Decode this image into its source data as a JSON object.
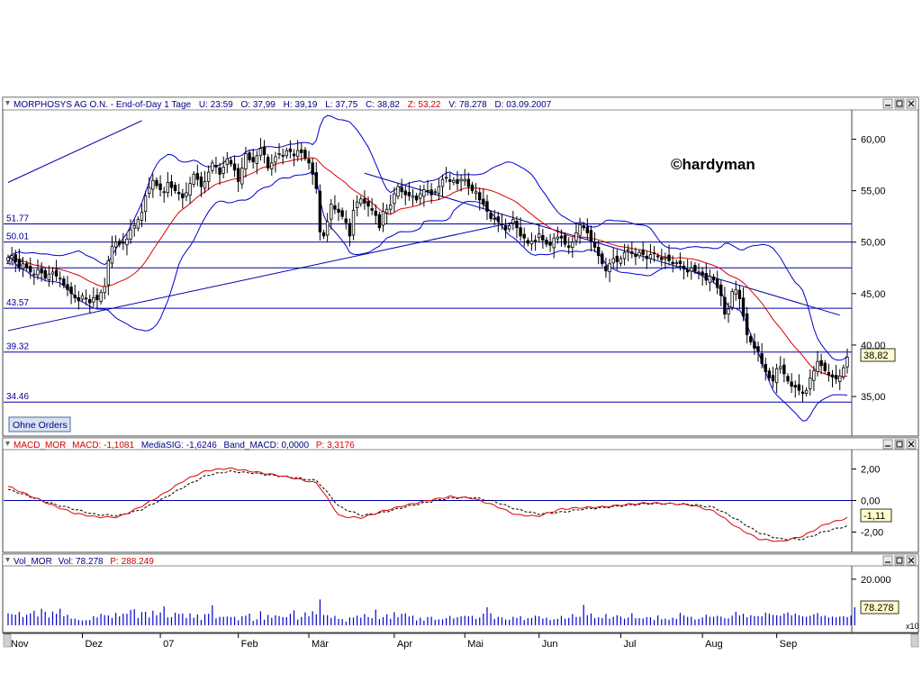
{
  "header": {
    "symbol": "MORPHOSYS AG O.N. - End-of-Day 1 Tage",
    "u_label": "U: 23:59",
    "o_label": "O: 37,99",
    "h_label": "H: 39,19",
    "l_label": "L: 37,75",
    "c_label": "C: 38,82",
    "z_label": "Z: 53,22",
    "v_label": "V: 78.278",
    "d_label": "D: 03.09.2007"
  },
  "watermark": "©hardyman",
  "orders_button": "Ohne Orders",
  "macd_header": {
    "name": "MACD_MOR",
    "macd": "MACD: -1,1081",
    "signal": "MediaSIG: -1,6246",
    "band": "Band_MACD: 0,0000",
    "p": "P: 3,3176"
  },
  "vol_header": {
    "name": "Vol_MOR",
    "vol": "Vol: 78.278",
    "p": "P: 288.249"
  },
  "last_price_label": "38,82",
  "last_macd_label": "-1,11",
  "last_vol_label": "78.278",
  "vol_scale_label": "x10",
  "colors": {
    "candle": "#000000",
    "bollinger": "#0000cd",
    "moving_average": "#dd0000",
    "hlines": "#0000aa",
    "macd": "#dd0000",
    "signal": "#000000",
    "volume": "#0000cd"
  },
  "chart_data": [
    {
      "type": "candlestick",
      "title": "MORPHOSYS AG O.N. - End-of-Day 1 Tage",
      "x_ticks": [
        "Nov",
        "Dez",
        "07",
        "Feb",
        "Mär",
        "Apr",
        "Mai",
        "Jun",
        "Jul",
        "Aug",
        "Sep"
      ],
      "ylim": [
        31.5,
        62.5
      ],
      "y_ticks": [
        "60,00",
        "55,00",
        "50,00",
        "45,00",
        "40,00",
        "35,00"
      ],
      "horizontal_levels": [
        {
          "label": "51.77",
          "value": 51.77
        },
        {
          "label": "50.01",
          "value": 50.01
        },
        {
          "label": "47.5",
          "value": 47.5
        },
        {
          "label": "43.57",
          "value": 43.57
        },
        {
          "label": "39.32",
          "value": 39.32
        },
        {
          "label": "34.46",
          "value": 34.46
        }
      ],
      "trendlines": [
        {
          "name": "upper channel",
          "from": [
            0,
            55.8
          ],
          "to": [
            36,
            61.8
          ]
        },
        {
          "name": "lower channel",
          "from": [
            0,
            41.4
          ],
          "to": [
            137,
            52.0
          ]
        },
        {
          "name": "downtrend",
          "from": [
            96,
            56.7
          ],
          "to": [
            224,
            42.9
          ]
        }
      ],
      "closes": [
        48.5,
        48.7,
        48.1,
        47.6,
        47.9,
        47.5,
        47.1,
        46.9,
        47.3,
        47.0,
        46.5,
        46.9,
        47.1,
        46.7,
        46.5,
        45.8,
        45.4,
        45.0,
        44.6,
        44.3,
        44.8,
        44.5,
        44.1,
        44.6,
        44.4,
        45.1,
        45.7,
        48.2,
        49.6,
        50.0,
        49.8,
        49.9,
        50.3,
        51.2,
        51.6,
        52.2,
        52.9,
        54.5,
        55.3,
        56.0,
        55.5,
        55.1,
        54.9,
        55.8,
        55.3,
        55.0,
        54.7,
        54.3,
        54.8,
        55.7,
        56.6,
        56.1,
        55.4,
        55.9,
        56.8,
        57.7,
        57.3,
        56.6,
        57.3,
        58.1,
        57.6,
        57.0,
        55.9,
        57.2,
        58.6,
        58.0,
        57.8,
        58.4,
        59.1,
        58.5,
        57.2,
        57.7,
        58.3,
        58.6,
        58.4,
        58.9,
        58.8,
        58.4,
        58.9,
        58.7,
        58.2,
        57.7,
        56.6,
        55.2,
        51.0,
        50.6,
        52.0,
        53.7,
        53.2,
        52.9,
        52.5,
        51.9,
        50.6,
        53.1,
        53.9,
        54.2,
        53.8,
        53.5,
        53.1,
        52.6,
        51.4,
        53.0,
        53.2,
        53.6,
        54.7,
        55.4,
        54.9,
        54.6,
        54.5,
        54.5,
        54.1,
        54.7,
        55.1,
        55.0,
        54.6,
        54.9,
        55.4,
        56.1,
        56.3,
        55.9,
        56.0,
        55.7,
        56.1,
        56.1,
        55.4,
        55.0,
        54.9,
        54.1,
        53.7,
        53.0,
        52.3,
        52.3,
        52.0,
        51.7,
        51.2,
        51.6,
        52.2,
        51.4,
        50.6,
        50.4,
        49.9,
        50.1,
        50.2,
        50.8,
        50.2,
        49.8,
        49.7,
        50.4,
        50.5,
        50.4,
        49.8,
        49.5,
        50.0,
        50.9,
        51.7,
        51.4,
        50.9,
        50.1,
        49.5,
        48.7,
        47.9,
        47.2,
        47.9,
        48.4,
        48.1,
        48.4,
        49.0,
        49.3,
        48.9,
        48.6,
        49.0,
        48.8,
        48.4,
        48.8,
        48.9,
        48.6,
        48.3,
        48.5,
        48.2,
        47.9,
        48.0,
        47.9,
        47.4,
        47.1,
        47.5,
        47.2,
        47.1,
        46.8,
        46.3,
        46.7,
        46.3,
        45.6,
        44.8,
        43.0,
        43.5,
        45.2,
        45.4,
        44.5,
        42.8,
        41.0,
        40.3,
        39.7,
        39.4,
        38.2,
        37.4,
        36.8,
        36.5,
        37.7,
        37.9,
        37.2,
        36.5,
        36.0,
        35.9,
        35.6,
        35.3,
        35.6,
        36.8,
        37.5,
        38.4,
        38.0,
        37.5,
        37.1,
        36.9,
        36.7,
        37.0,
        37.8,
        38.82
      ]
    },
    {
      "type": "line",
      "title": "MACD_MOR",
      "ylim": [
        -3.0,
        3.0
      ],
      "y_ticks": [
        "2,00",
        "0,00",
        "-2,00"
      ],
      "series": [
        {
          "name": "MACD",
          "values": [
            0.9,
            0.3,
            -0.3,
            -0.8,
            -1.05,
            -1.05,
            -0.4,
            0.4,
            1.3,
            1.9,
            2.05,
            1.85,
            1.65,
            1.4,
            1.1,
            -1.0,
            -1.1,
            -0.65,
            -0.3,
            0.0,
            0.25,
            0.15,
            -0.3,
            -0.9,
            -1.0,
            -0.55,
            -0.45,
            -0.4,
            -0.25,
            -0.15,
            -0.2,
            -0.3,
            -0.7,
            -1.7,
            -2.45,
            -2.6,
            -2.25,
            -1.5,
            -1.11
          ]
        },
        {
          "name": "MediaSIG",
          "values": [
            0.7,
            0.25,
            -0.2,
            -0.55,
            -0.9,
            -0.95,
            -0.6,
            0.1,
            0.9,
            1.6,
            1.85,
            1.75,
            1.6,
            1.45,
            1.25,
            -0.4,
            -0.95,
            -0.75,
            -0.4,
            -0.1,
            0.15,
            0.2,
            -0.05,
            -0.55,
            -0.85,
            -0.75,
            -0.55,
            -0.45,
            -0.3,
            -0.2,
            -0.2,
            -0.25,
            -0.45,
            -1.2,
            -2.05,
            -2.45,
            -2.45,
            -1.95,
            -1.62
          ]
        }
      ]
    },
    {
      "type": "bar",
      "title": "Vol_MOR",
      "ylim": [
        0,
        25000
      ],
      "y_ticks": [
        "20.000"
      ],
      "values": [
        5200,
        4800,
        4600,
        5800,
        3600,
        4600,
        5200,
        6300,
        3800,
        7200,
        5900,
        3400,
        6000,
        5000,
        7200,
        3900,
        4600,
        2900,
        2900,
        2300,
        2100,
        2200,
        2300,
        4000,
        3400,
        5000,
        4400,
        4300,
        3200,
        5400,
        3900,
        5000,
        5000,
        6700,
        7000,
        3200,
        5800,
        5900,
        3400,
        6300,
        4400,
        5600,
        8200,
        3400,
        3500,
        5500,
        4900,
        5100,
        3200,
        5200,
        3300,
        4700,
        2300,
        4800,
        5000,
        8700,
        3000,
        3700,
        3700,
        3800,
        3600,
        3700,
        2200,
        3900,
        4200,
        5100,
        1900,
        2600,
        6100,
        2400,
        4500,
        3300,
        4400,
        4000,
        3600,
        3500,
        5000,
        6500,
        2500,
        3600,
        5600,
        3900,
        6100,
        4800,
        11200,
        4500,
        4400,
        3200,
        4100,
        2800,
        2700,
        1600,
        3400,
        3400,
        4200,
        3300,
        4900,
        3600,
        3100,
        6800,
        2700,
        3600,
        4700,
        2800,
        5700,
        3500,
        5000,
        5200,
        3800,
        4200,
        2100,
        3300,
        2100,
        3600,
        3700,
        2400,
        2600,
        2600,
        3100,
        4100,
        3000,
        3500,
        3900,
        4100,
        3900,
        4100,
        2800,
        3400,
        5100,
        7800,
        5200,
        2800,
        3700,
        3400,
        2500,
        2400,
        3700,
        3200,
        4000,
        2300,
        3100,
        3200,
        4200,
        4000,
        2900,
        3300,
        2300,
        2600,
        2800,
        4100,
        2900,
        3200,
        4900,
        3600,
        3700,
        8900,
        4400,
        5200,
        3100,
        3500,
        3200,
        4900,
        2900,
        3700,
        4400,
        3800,
        2900,
        3400,
        5300,
        3100,
        3100,
        3000,
        3600,
        3500,
        2300,
        4300,
        2600,
        2900,
        2400,
        3300,
        2800,
        5400,
        4300,
        3600,
        3700,
        2500,
        2800,
        3400,
        4600,
        3700,
        3700,
        4100,
        3800,
        3100,
        3000,
        4200,
        5800,
        4300,
        5000,
        3500,
        4400,
        4000,
        4000,
        3900,
        5500,
        5000,
        4500,
        4400,
        4100,
        5100,
        5600,
        4300,
        5100,
        4400,
        3900,
        3700,
        4100,
        4800,
        5300,
        3900,
        4200,
        3400,
        3800,
        3400,
        3800,
        4000,
        3600,
        4200,
        7827
      ]
    }
  ]
}
